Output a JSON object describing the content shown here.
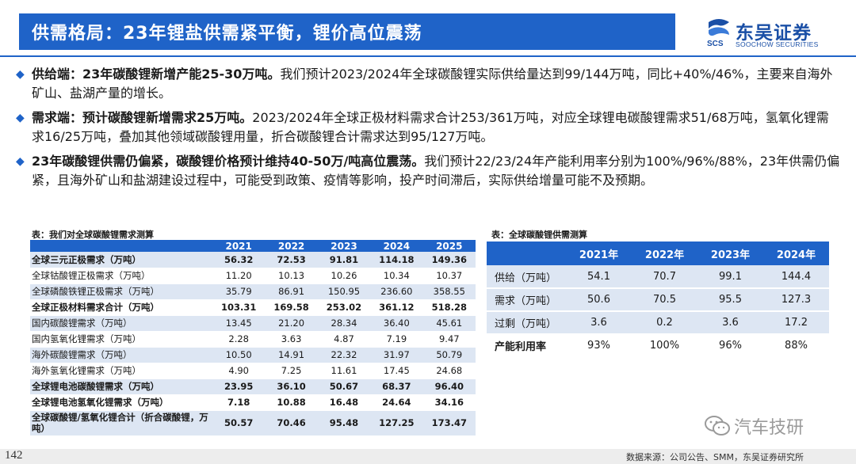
{
  "header": {
    "title": "供需格局：23年锂盐供需紧平衡，锂价高位震荡",
    "logo_cn": "东吴证券",
    "logo_en": "SOOCHOW SECURITIES",
    "logo_mark_text": "SCS"
  },
  "bullets": [
    {
      "lead": "供给端：23年碳酸锂新增产能25-30万吨。",
      "text": "我们预计2023/2024年全球碳酸锂实际供给量达到99/144万吨，同比+40%/46%，主要来自海外矿山、盐湖产量的增长。"
    },
    {
      "lead": "需求端：预计碳酸锂新增需求25万吨。",
      "text": "2023/2024年全球正极材料需求合计253/361万吨，对应全球锂电碳酸锂需求51/68万吨，氢氧化锂需求16/25万吨，叠加其他领域碳酸锂用量，折合碳酸锂合计需求达到95/127万吨。"
    },
    {
      "lead": "23年碳酸锂供需仍偏紧，碳酸锂价格预计维持40-50万/吨高位震荡。",
      "text": "我们预计22/23/24年产能利用率分别为100%/96%/88%，23年供需仍偏紧，且海外矿山和盐湖建设过程中，可能受到政策、疫情等影响，投产时间滞后，实际供给增量可能不及预期。"
    }
  ],
  "table1": {
    "caption": "表：我们对全球碳酸锂需求测算",
    "headers": [
      "",
      "2021",
      "2022",
      "2023",
      "2024",
      "2025"
    ],
    "rows": [
      {
        "label": "全球三元正极需求（万吨）",
        "values": [
          "56.32",
          "72.53",
          "91.81",
          "114.18",
          "149.36"
        ]
      },
      {
        "label": "全球钴酸锂正极需求（万吨）",
        "values": [
          "11.20",
          "10.13",
          "10.26",
          "10.34",
          "10.37"
        ]
      },
      {
        "label": "全球磷酸铁锂正极需求（万吨）",
        "values": [
          "35.79",
          "86.91",
          "150.95",
          "236.60",
          "358.55"
        ]
      },
      {
        "label": "全球正极材料需求合计（万吨）",
        "values": [
          "103.31",
          "169.58",
          "253.02",
          "361.12",
          "518.28"
        ]
      },
      {
        "label": "国内碳酸锂需求（万吨）",
        "values": [
          "13.45",
          "21.20",
          "28.34",
          "36.40",
          "45.61"
        ]
      },
      {
        "label": "国内氢氧化锂需求（万吨）",
        "values": [
          "2.28",
          "3.63",
          "4.87",
          "7.19",
          "9.47"
        ]
      },
      {
        "label": "海外碳酸锂需求（万吨）",
        "values": [
          "10.50",
          "14.91",
          "22.32",
          "31.97",
          "50.79"
        ]
      },
      {
        "label": "海外氢氧化锂需求（万吨）",
        "values": [
          "4.90",
          "7.25",
          "11.61",
          "17.45",
          "24.68"
        ]
      },
      {
        "label": "全球锂电池碳酸锂需求（万吨）",
        "values": [
          "23.95",
          "36.10",
          "50.67",
          "68.37",
          "96.40"
        ]
      },
      {
        "label": "全球锂电池氢氧化锂需求（万吨）",
        "values": [
          "7.18",
          "10.88",
          "16.48",
          "24.64",
          "34.16"
        ]
      },
      {
        "label": "全球碳酸锂/氢氧化锂合计（折合碳酸锂，万吨）",
        "values": [
          "50.57",
          "70.46",
          "95.48",
          "127.25",
          "173.47"
        ]
      }
    ]
  },
  "table2": {
    "caption": "表：全球碳酸锂供需测算",
    "headers": [
      "",
      "2021年",
      "2022年",
      "2023年",
      "2024年"
    ],
    "rows": [
      {
        "label": "供给（万吨）",
        "values": [
          "54.1",
          "70.7",
          "99.1",
          "144.4"
        ]
      },
      {
        "label": "需求（万吨）",
        "values": [
          "50.6",
          "70.5",
          "95.5",
          "127.3"
        ]
      },
      {
        "label": "过剩（万吨）",
        "values": [
          "3.6",
          "0.2",
          "3.6",
          "17.2"
        ]
      },
      {
        "label": "产能利用率",
        "values": [
          "93%",
          "100%",
          "96%",
          "88%"
        ]
      }
    ]
  },
  "watermark": "汽车技研",
  "footer": {
    "page": "142",
    "source": "数据来源：公司公告、SMM，东吴证券研究所"
  },
  "colors": {
    "brand_blue": "#1f63c8",
    "row_shade": "#dde6f3"
  }
}
